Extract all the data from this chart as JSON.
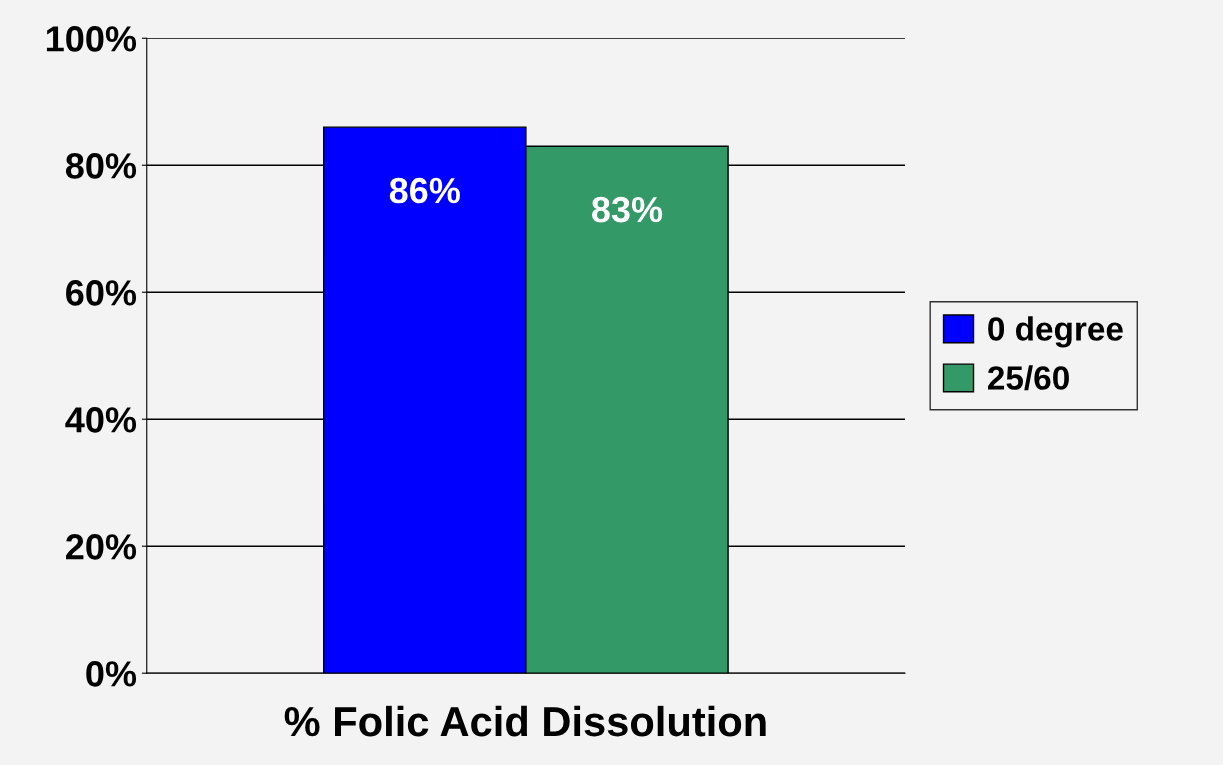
{
  "chart_data": {
    "type": "bar",
    "xlabel": "% Folic Acid Dissolution",
    "categories": [
      null
    ],
    "series": [
      {
        "name": "0 degree",
        "color": "#0000ff",
        "values": [
          86
        ],
        "value_labels": [
          "86%"
        ]
      },
      {
        "name": "25/60",
        "color": "#339966",
        "values": [
          83
        ],
        "value_labels": [
          "83%"
        ]
      }
    ],
    "ylim": [
      0,
      100
    ],
    "yticks": [
      {
        "value": 0,
        "label": "0%"
      },
      {
        "value": 20,
        "label": "20%"
      },
      {
        "value": 40,
        "label": "40%"
      },
      {
        "value": 60,
        "label": "60%"
      },
      {
        "value": 80,
        "label": "80%"
      },
      {
        "value": 100,
        "label": "100%"
      }
    ],
    "grid": "y",
    "legend": "right"
  }
}
